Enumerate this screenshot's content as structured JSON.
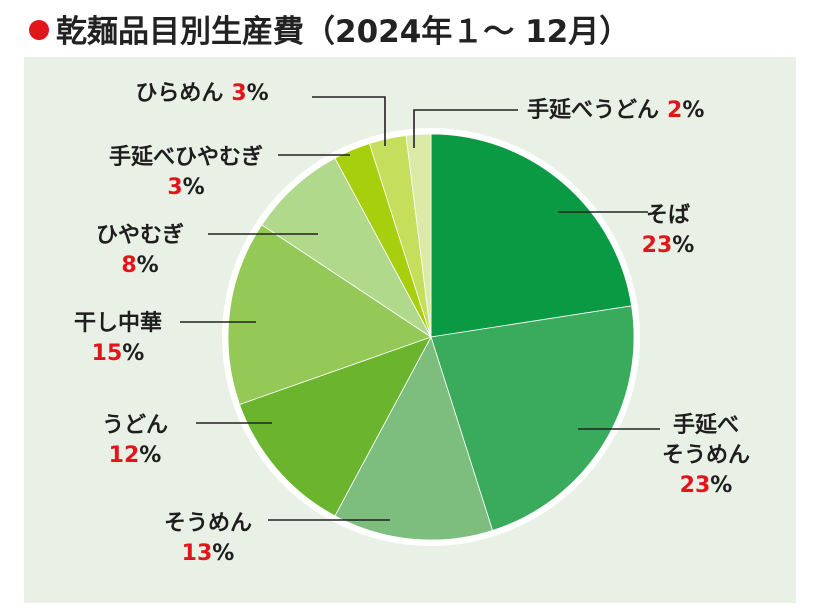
{
  "title": "乾麺品目別生産費（2024年１～ 12月）",
  "colors": {
    "title_dot": "#e2151b",
    "percent_text": "#e2151b",
    "background": "#e9f0e5"
  },
  "chart_data": {
    "type": "pie",
    "title": "乾麺品目別生産費（2024年１～ 12月）",
    "unit": "%",
    "slices": [
      {
        "name": "そば",
        "lines": [
          "そば"
        ],
        "value": 23,
        "color": "#0a9a44"
      },
      {
        "name": "手延べそうめん",
        "lines": [
          "手延べ",
          "そうめん"
        ],
        "value": 23,
        "color": "#3aaa5c"
      },
      {
        "name": "そうめん",
        "lines": [
          "そうめん"
        ],
        "value": 13,
        "color": "#7dbd7d"
      },
      {
        "name": "うどん",
        "lines": [
          "うどん"
        ],
        "value": 12,
        "color": "#6bb52e"
      },
      {
        "name": "干し中華",
        "lines": [
          "干し中華"
        ],
        "value": 15,
        "color": "#95c957"
      },
      {
        "name": "ひやむぎ",
        "lines": [
          "ひやむぎ"
        ],
        "value": 8,
        "color": "#b1d98c"
      },
      {
        "name": "手延べひやむぎ",
        "lines": [
          "手延べひやむぎ"
        ],
        "value": 3,
        "color": "#a8cf0d"
      },
      {
        "name": "ひらめん",
        "lines": [
          "ひらめん"
        ],
        "value": 3,
        "color": "#c5de5b"
      },
      {
        "name": "手延べうどん",
        "lines": [
          "手延べうどん"
        ],
        "value": 2,
        "color": "#dbeaa6"
      }
    ]
  }
}
